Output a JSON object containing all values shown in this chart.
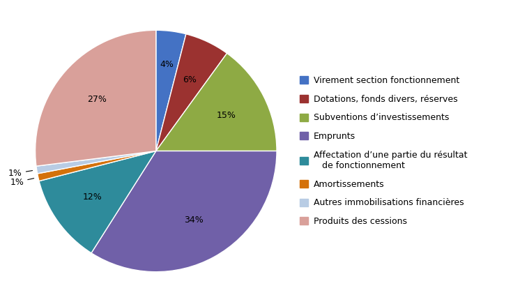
{
  "legend_labels": [
    "Virement section fonctionnement",
    "Dotations, fonds divers, réserves",
    "Subventions d’investissements",
    "Emprunts",
    "Affectation d’une partie du résultat\n   de fonctionnement",
    "Amortissements",
    "Autres immobilisations financières",
    "Produits des cessions"
  ],
  "values": [
    4,
    6,
    15,
    34,
    12,
    1,
    1,
    27
  ],
  "colors": [
    "#4472C4",
    "#9B3230",
    "#8EAA44",
    "#7060A8",
    "#2E8B9B",
    "#D4710A",
    "#B8CCE4",
    "#D9A09A"
  ],
  "pct_labels": [
    "4%",
    "6%",
    "15%",
    "34%",
    "12%",
    "1%",
    "1%",
    "27%"
  ],
  "startangle": 90,
  "figsize": [
    7.46,
    4.33
  ],
  "dpi": 100,
  "background_color": "#FFFFFF"
}
